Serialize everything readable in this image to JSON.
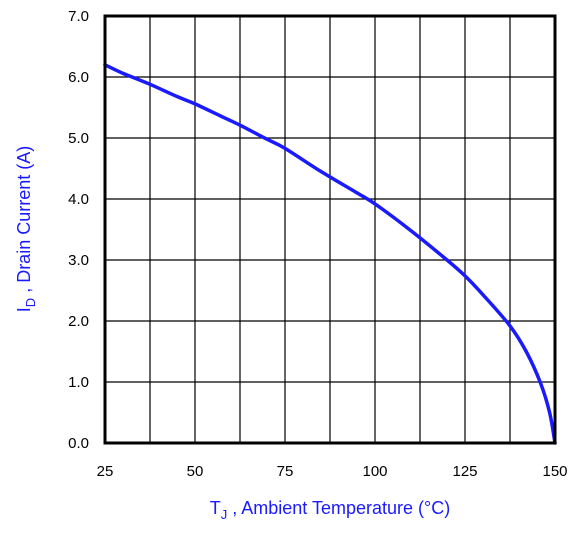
{
  "chart_data": {
    "type": "line",
    "title": "",
    "xlabel": {
      "main": "T",
      "sub": "J",
      "rest": " , Ambient Temperature (°C)"
    },
    "ylabel": {
      "main": "I",
      "sub": "D",
      "rest": " , Drain Current (A)"
    },
    "xlim": [
      25,
      150
    ],
    "ylim": [
      0,
      7
    ],
    "x_ticks": [
      "25",
      "50",
      "75",
      "100",
      "125",
      "150"
    ],
    "y_ticks": [
      "0.0",
      "1.0",
      "2.0",
      "3.0",
      "4.0",
      "5.0",
      "6.0",
      "7.0"
    ],
    "x_tick_values": [
      25,
      50,
      75,
      100,
      125,
      150
    ],
    "y_tick_values": [
      0,
      1,
      2,
      3,
      4,
      5,
      6,
      7
    ],
    "grid": true,
    "grid_minor_x": 12.5,
    "series": [
      {
        "color": "#1a1aff",
        "x": [
          25,
          30,
          37.5,
          45,
          50,
          57.5,
          62.5,
          70,
          75,
          85,
          95,
          100,
          110,
          120,
          125,
          130,
          137.5,
          142,
          146,
          148.5,
          150
        ],
        "y": [
          6.2,
          6.06,
          5.88,
          5.68,
          5.56,
          5.35,
          5.21,
          4.98,
          4.83,
          4.45,
          4.1,
          3.92,
          3.48,
          3.0,
          2.74,
          2.43,
          1.92,
          1.5,
          0.98,
          0.5,
          0.0
        ]
      }
    ]
  }
}
